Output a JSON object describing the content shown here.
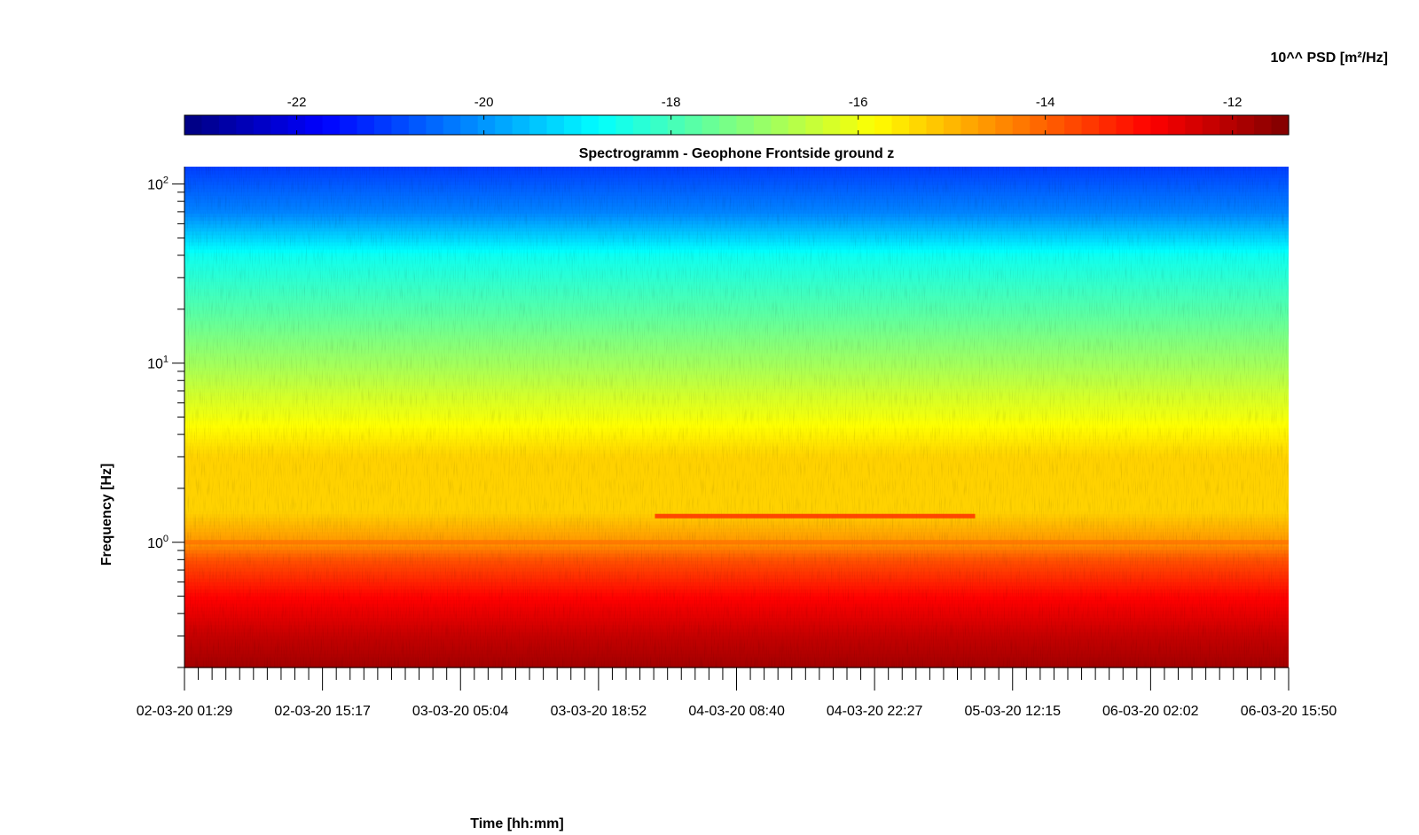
{
  "chart_data": {
    "type": "heatmap",
    "title": "Spectrogramm - Geophone Frontside ground z",
    "xlabel": "Time [hh:mm]",
    "ylabel": "Frequency [Hz]",
    "colorbar": {
      "label": "10^^ PSD [m²/Hz]",
      "range": [
        -23.2,
        -11.4
      ],
      "ticks": [
        -22,
        -20,
        -18,
        -16,
        -14,
        -12
      ],
      "tick_labels": [
        "-22",
        "-20",
        "-18",
        "-16",
        "-14",
        "-12"
      ],
      "colormap": "jet",
      "placement": "top"
    },
    "x_ticks": [
      "02-03-20 01:29",
      "02-03-20 15:17",
      "03-03-20 05:04",
      "03-03-20 18:52",
      "04-03-20 08:40",
      "04-03-20 22:27",
      "05-03-20 12:15",
      "06-03-20 02:02",
      "06-03-20 15:50"
    ],
    "xlim": [
      "02-03-20 01:29",
      "06-03-20 15:50"
    ],
    "y_scale": "log",
    "ylim": [
      0.2,
      125
    ],
    "y_ticks": [
      1,
      10,
      100
    ],
    "y_tick_labels": [
      {
        "base": "10",
        "exp": "0"
      },
      {
        "base": "10",
        "exp": "1"
      },
      {
        "base": "10",
        "exp": "2"
      }
    ],
    "psd_profile_vs_frequency": [
      {
        "freq": 0.2,
        "psd": -11.8
      },
      {
        "freq": 0.3,
        "psd": -12.2
      },
      {
        "freq": 0.5,
        "psd": -12.9
      },
      {
        "freq": 0.8,
        "psd": -13.8
      },
      {
        "freq": 1.0,
        "psd": -14.6
      },
      {
        "freq": 1.5,
        "psd": -15.3
      },
      {
        "freq": 3.0,
        "psd": -15.3
      },
      {
        "freq": 6.0,
        "psd": -16.2
      },
      {
        "freq": 10,
        "psd": -16.9
      },
      {
        "freq": 20,
        "psd": -17.8
      },
      {
        "freq": 40,
        "psd": -18.6
      },
      {
        "freq": 70,
        "psd": -20.2
      },
      {
        "freq": 125,
        "psd": -21.0
      }
    ],
    "features": [
      {
        "kind": "persistent_tone",
        "freq": 1.4,
        "psd": -13.3,
        "x_start": "04-03-20 00:30",
        "x_end": "05-03-20 08:30"
      },
      {
        "kind": "persistent_tone",
        "freq": 1.0,
        "psd": -14.2,
        "x_start": "02-03-20 01:29",
        "x_end": "06-03-20 15:50"
      }
    ]
  }
}
